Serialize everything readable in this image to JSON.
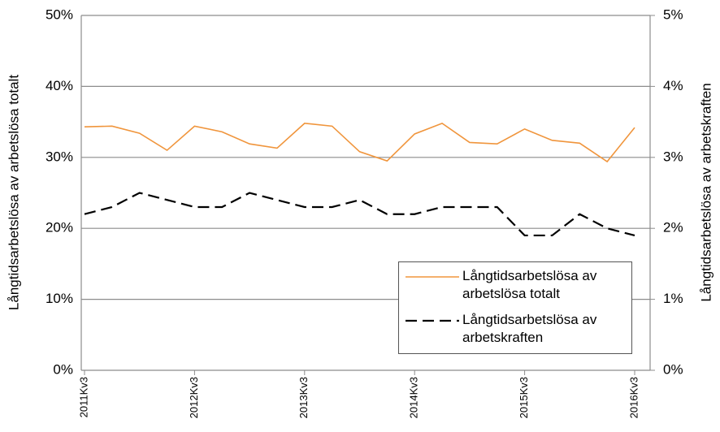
{
  "chart_data": {
    "type": "line",
    "y_label": "Långtidsarbetslösa av arbetslösa totalt",
    "y2_label": "Långtidsarbetslösa av arbetskraften",
    "categories": [
      "2011Kv3",
      null,
      null,
      null,
      "2012Kv3",
      null,
      null,
      null,
      "2013Kv3",
      null,
      null,
      null,
      "2014Kv3",
      null,
      null,
      null,
      "2015Kv3",
      null,
      null,
      null,
      "2016Kv3"
    ],
    "series": [
      {
        "name": "Långtidsarbetslösa av arbetslösa totalt",
        "color": "#f0953c",
        "dash": false,
        "values": [
          34.3,
          34.4,
          33.4,
          31.0,
          34.4,
          33.6,
          31.9,
          31.3,
          34.8,
          34.4,
          30.8,
          29.5,
          33.3,
          34.8,
          32.1,
          31.9,
          34.0,
          32.4,
          32.0,
          29.4,
          34.2
        ]
      },
      {
        "name": "Långtidsarbetslösa av arbetskraften",
        "color": "#000000",
        "dash": true,
        "axis": "y2",
        "values": [
          2.2,
          2.3,
          2.5,
          2.4,
          2.3,
          2.3,
          2.5,
          2.4,
          2.3,
          2.3,
          2.4,
          2.2,
          2.2,
          2.3,
          2.3,
          2.3,
          1.9,
          1.9,
          2.2,
          2.0,
          1.9
        ]
      }
    ],
    "ylim": [
      0,
      50
    ],
    "yticks": [
      {
        "value": 0,
        "label": "0%"
      },
      {
        "value": 10,
        "label": "10%"
      },
      {
        "value": 20,
        "label": "20%"
      },
      {
        "value": 30,
        "label": "30%"
      },
      {
        "value": 40,
        "label": "40%"
      },
      {
        "value": 50,
        "label": "50%"
      }
    ],
    "y2lim": [
      0,
      5
    ],
    "y2ticks": [
      {
        "value": 0,
        "label": "0%"
      },
      {
        "value": 1,
        "label": "1%"
      },
      {
        "value": 2,
        "label": "2%"
      },
      {
        "value": 3,
        "label": "3%"
      },
      {
        "value": 4,
        "label": "4%"
      },
      {
        "value": 5,
        "label": "5%"
      }
    ],
    "grid": true,
    "legend": "lower right"
  }
}
